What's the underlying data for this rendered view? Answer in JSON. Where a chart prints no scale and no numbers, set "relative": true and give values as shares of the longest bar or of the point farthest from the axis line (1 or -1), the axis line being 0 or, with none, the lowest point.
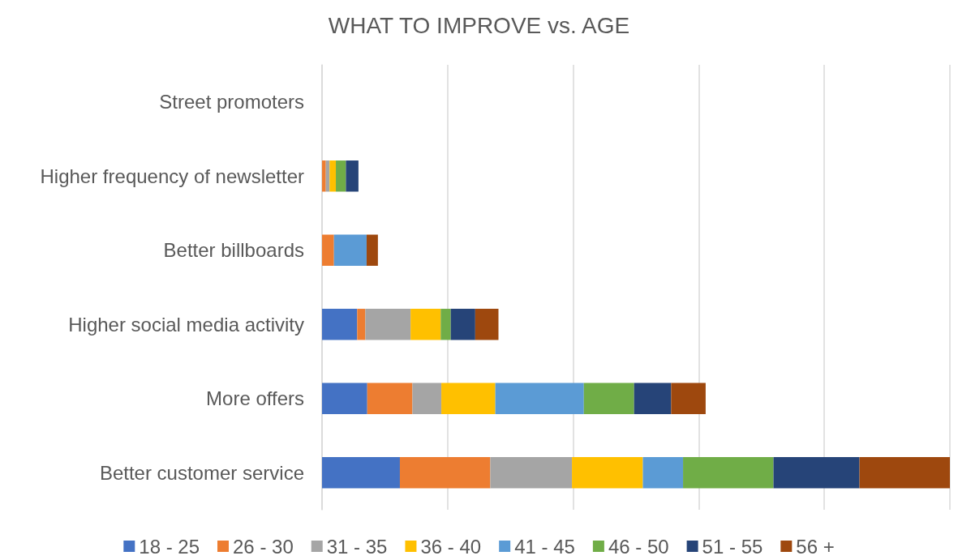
{
  "chart_data": {
    "type": "bar",
    "title": "WHAT TO IMPROVE vs. AGE",
    "orientation": "horizontal",
    "stacked": true,
    "relative": true,
    "grid": "x",
    "legend": "bottom",
    "categories": [
      "Street promoters",
      "Higher frequency of newsletter",
      "Better billboards",
      "Higher social media activity",
      "More offers",
      "Better customer service"
    ],
    "series": [
      {
        "name": "18 - 25",
        "color": "#4472c4",
        "values": [
          0,
          0,
          0,
          0.056,
          0.072,
          0.124
        ]
      },
      {
        "name": "26 - 30",
        "color": "#ed7d31",
        "values": [
          0,
          0.006,
          0.019,
          0.013,
          0.072,
          0.144
        ]
      },
      {
        "name": "31 - 35",
        "color": "#a5a5a5",
        "values": [
          0,
          0.006,
          0,
          0.072,
          0.046,
          0.13
        ]
      },
      {
        "name": "36 - 40",
        "color": "#ffc000",
        "values": [
          0,
          0.01,
          0,
          0.048,
          0.086,
          0.113
        ]
      },
      {
        "name": "41 - 45",
        "color": "#5b9bd5",
        "values": [
          0,
          0,
          0.052,
          0,
          0.141,
          0.064
        ]
      },
      {
        "name": "46 - 50",
        "color": "#70ad47",
        "values": [
          0,
          0.016,
          0,
          0.016,
          0.08,
          0.144
        ]
      },
      {
        "name": "51 - 55",
        "color": "#264478",
        "values": [
          0,
          0.02,
          0,
          0.039,
          0.059,
          0.137
        ]
      },
      {
        "name": "56 +",
        "color": "#9e480e",
        "values": [
          0,
          0,
          0.018,
          0.037,
          0.055,
          0.144
        ]
      }
    ]
  }
}
